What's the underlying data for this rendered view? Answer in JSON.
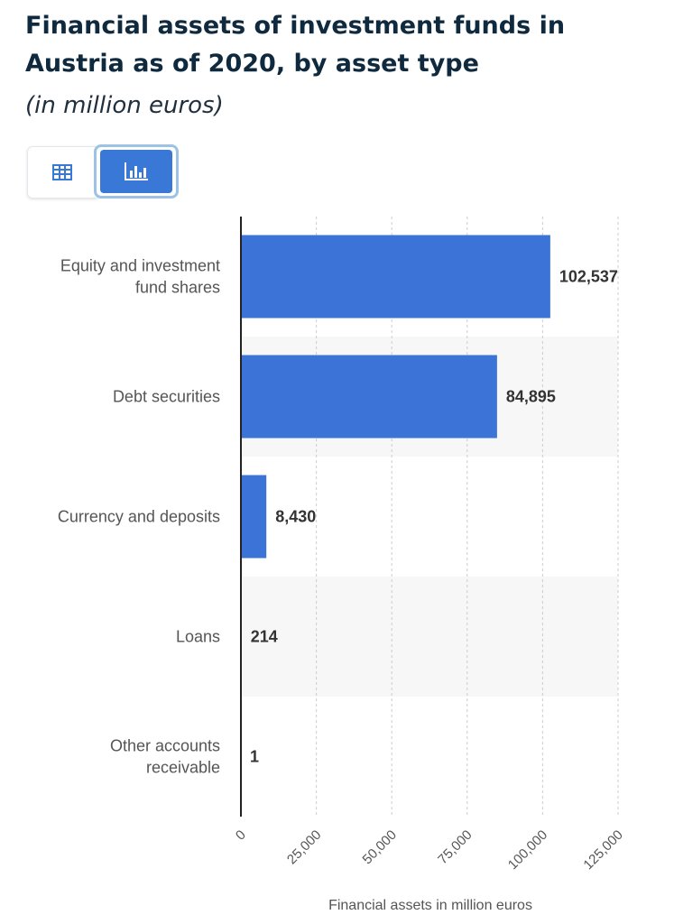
{
  "header": {
    "title_line1": "Financial assets of investment funds in",
    "title_line2": "Austria as of 2020, by asset type",
    "subtitle": "(in million euros)"
  },
  "toggle": {
    "table_icon": "table-icon",
    "chart_icon": "bar-chart-icon",
    "active": "chart"
  },
  "colors": {
    "bar": "#3b74d6",
    "band": "#f7f7f7",
    "grid": "#cccccc",
    "axis": "#222222",
    "value_label": "#333333",
    "category_label": "#555555"
  },
  "chart_data": {
    "type": "bar",
    "orientation": "horizontal",
    "categories": [
      [
        "Equity and investment",
        "fund shares"
      ],
      [
        "Debt securities"
      ],
      [
        "Currency and deposits"
      ],
      [
        "Loans"
      ],
      [
        "Other accounts",
        "receivable"
      ]
    ],
    "values": [
      102537,
      84895,
      8430,
      214,
      1
    ],
    "value_labels": [
      "102,537",
      "84,895",
      "8,430",
      "214",
      "1"
    ],
    "xlabel": "Financial assets in million euros",
    "xlim": [
      0,
      125000
    ],
    "xticks": [
      0,
      25000,
      50000,
      75000,
      100000,
      125000
    ],
    "xtick_labels": [
      "0",
      "25,000",
      "50,000",
      "75,000",
      "100,000",
      "125,000"
    ],
    "grid": "vertical dashed"
  }
}
